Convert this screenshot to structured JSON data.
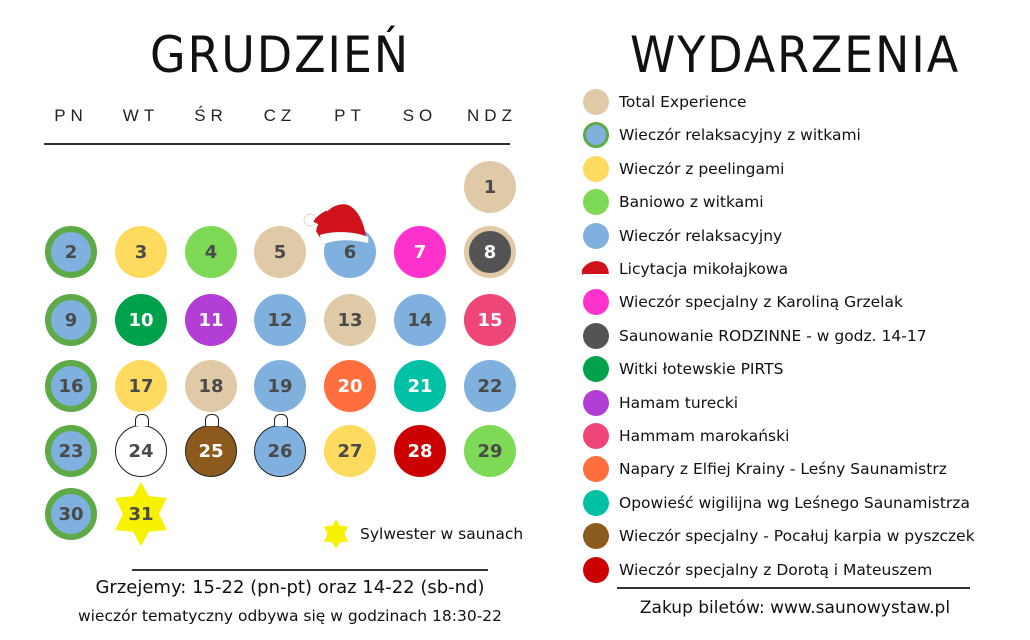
{
  "calendar": {
    "title": "GRUDZIEŃ",
    "weekdays": [
      "PN",
      "WT",
      "ŚR",
      "CZ",
      "PT",
      "SO",
      "NDZ"
    ],
    "days": [
      {
        "day": "1",
        "col": 6,
        "row": 0,
        "fill": "#e0c9a6",
        "text_color": "#4a4a4a",
        "style": "plain",
        "event": "Total Experience"
      },
      {
        "day": "2",
        "col": 0,
        "row": 1,
        "fill": "#7fb0de",
        "text_color": "#4a4a4a",
        "style": "ring-green",
        "event": "Wieczór relaksacyjny z witkami"
      },
      {
        "day": "3",
        "col": 1,
        "row": 1,
        "fill": "#fedb5e",
        "text_color": "#4a4a4a",
        "style": "plain",
        "event": "Wieczór z peelingami"
      },
      {
        "day": "4",
        "col": 2,
        "row": 1,
        "fill": "#7ed957",
        "text_color": "#4a4a4a",
        "style": "plain",
        "event": "Baniowo z witkami"
      },
      {
        "day": "5",
        "col": 3,
        "row": 1,
        "fill": "#e0c9a6",
        "text_color": "#4a4a4a",
        "style": "plain",
        "event": "Total Experience"
      },
      {
        "day": "6",
        "col": 4,
        "row": 1,
        "fill": "#7fb0de",
        "text_color": "#4a4a4a",
        "style": "plain",
        "event": "Wieczór relaksacyjny",
        "extra": "Licytacja mikołajkowa"
      },
      {
        "day": "7",
        "col": 5,
        "row": 1,
        "fill": "#ff33cc",
        "text_color": "#ffffff",
        "style": "plain",
        "event": "Wieczór specjalny z Karoliną Grzelak"
      },
      {
        "day": "8",
        "col": 6,
        "row": 1,
        "fill": "#545454",
        "text_color": "#ffffff",
        "style": "ring-tan",
        "event": "Saunowanie RODZINNE - w godz. 14-17"
      },
      {
        "day": "9",
        "col": 0,
        "row": 2,
        "fill": "#7fb0de",
        "text_color": "#4a4a4a",
        "style": "ring-green",
        "event": "Wieczór relaksacyjny z witkami"
      },
      {
        "day": "10",
        "col": 1,
        "row": 2,
        "fill": "#00a14b",
        "text_color": "#ffffff",
        "style": "plain",
        "event": "Witki łotewskie PIRTS"
      },
      {
        "day": "11",
        "col": 2,
        "row": 2,
        "fill": "#b23ed6",
        "text_color": "#ffffff",
        "style": "plain",
        "event": "Hamam turecki"
      },
      {
        "day": "12",
        "col": 3,
        "row": 2,
        "fill": "#7fb0de",
        "text_color": "#4a4a4a",
        "style": "plain",
        "event": "Wieczór relaksacyjny"
      },
      {
        "day": "13",
        "col": 4,
        "row": 2,
        "fill": "#e0c9a6",
        "text_color": "#4a4a4a",
        "style": "plain",
        "event": "Total Experience"
      },
      {
        "day": "14",
        "col": 5,
        "row": 2,
        "fill": "#7fb0de",
        "text_color": "#4a4a4a",
        "style": "plain",
        "event": "Wieczór relaksacyjny"
      },
      {
        "day": "15",
        "col": 6,
        "row": 2,
        "fill": "#ed4677",
        "text_color": "#ffffff",
        "style": "plain",
        "event": "Hammam marokański"
      },
      {
        "day": "16",
        "col": 0,
        "row": 3,
        "fill": "#7fb0de",
        "text_color": "#4a4a4a",
        "style": "ring-green",
        "event": "Wieczór relaksacyjny z witkami"
      },
      {
        "day": "17",
        "col": 1,
        "row": 3,
        "fill": "#fedb5e",
        "text_color": "#4a4a4a",
        "style": "plain",
        "event": "Wieczór z peelingami"
      },
      {
        "day": "18",
        "col": 2,
        "row": 3,
        "fill": "#e0c9a6",
        "text_color": "#4a4a4a",
        "style": "plain",
        "event": "Total Experience"
      },
      {
        "day": "19",
        "col": 3,
        "row": 3,
        "fill": "#7fb0de",
        "text_color": "#4a4a4a",
        "style": "plain",
        "event": "Wieczór relaksacyjny"
      },
      {
        "day": "20",
        "col": 4,
        "row": 3,
        "fill": "#ff6f3d",
        "text_color": "#ffffff",
        "style": "plain",
        "event": "Napary z Elfiej Krainy - Leśny Saunamistrz"
      },
      {
        "day": "21",
        "col": 5,
        "row": 3,
        "fill": "#00c1a6",
        "text_color": "#ffffff",
        "style": "plain",
        "event": "Opowieść wigilijna wg Leśnego Saunamistrza"
      },
      {
        "day": "22",
        "col": 6,
        "row": 3,
        "fill": "#7fb0de",
        "text_color": "#4a4a4a",
        "style": "plain",
        "event": "Wieczór relaksacyjny"
      },
      {
        "day": "23",
        "col": 0,
        "row": 4,
        "fill": "#7fb0de",
        "text_color": "#4a4a4a",
        "style": "ring-green",
        "event": "Wieczór relaksacyjny z witkami"
      },
      {
        "day": "24",
        "col": 1,
        "row": 4,
        "fill": "#ffffff",
        "text_color": "#4a4a4a",
        "style": "ornament",
        "event": ""
      },
      {
        "day": "25",
        "col": 2,
        "row": 4,
        "fill": "#8b5a1c",
        "text_color": "#ffffff",
        "style": "ornament",
        "event": "Wieczór specjalny - Pocałuj karpia w pyszczek"
      },
      {
        "day": "26",
        "col": 3,
        "row": 4,
        "fill": "#7fb0de",
        "text_color": "#4a4a4a",
        "style": "ornament",
        "event": "Wieczór relaksacyjny"
      },
      {
        "day": "27",
        "col": 4,
        "row": 4,
        "fill": "#fedb5e",
        "text_color": "#4a4a4a",
        "style": "plain",
        "event": "Wieczór z peelingami"
      },
      {
        "day": "28",
        "col": 5,
        "row": 4,
        "fill": "#cc0000",
        "text_color": "#ffffff",
        "style": "plain",
        "event": "Wieczór specjalny z Dorotą i Mateuszem"
      },
      {
        "day": "29",
        "col": 6,
        "row": 4,
        "fill": "#7ed957",
        "text_color": "#4a4a4a",
        "style": "plain",
        "event": "Baniowo z witkami"
      },
      {
        "day": "30",
        "col": 0,
        "row": 5,
        "fill": "#7fb0de",
        "text_color": "#4a4a4a",
        "style": "ring-green",
        "event": "Wieczór relaksacyjny z witkami"
      },
      {
        "day": "31",
        "col": 1,
        "row": 5,
        "fill": "#f7f300",
        "text_color": "#4a4a4a",
        "style": "star",
        "event": "Sylwester w saunach"
      }
    ],
    "star_note": "Sylwester w saunach",
    "hours_line": "Grzejemy: 15-22 (pn-pt) oraz 14-22 (sb-nd)",
    "themed_evening_line": "wieczór tematyczny odbywa się w godzinach 18:30-22"
  },
  "events": {
    "title": "WYDARZENIA",
    "items": [
      {
        "label": "Total Experience",
        "color": "#e0c9a6",
        "icon": "circle"
      },
      {
        "label": "Wieczór relaksacyjny z witkami",
        "color": "#7fb0de",
        "ring": "#5eaa46",
        "icon": "ring-circle"
      },
      {
        "label": "Wieczór z peelingami",
        "color": "#fedb5e",
        "icon": "circle"
      },
      {
        "label": "Baniowo z witkami",
        "color": "#7ed957",
        "icon": "circle"
      },
      {
        "label": "Wieczór relaksacyjny",
        "color": "#7fb0de",
        "icon": "circle"
      },
      {
        "label": "Licytacja mikołajkowa",
        "color": "#cc0000",
        "icon": "santa-hat"
      },
      {
        "label": "Wieczór specjalny z Karoliną Grzelak",
        "color": "#ff33cc",
        "icon": "circle"
      },
      {
        "label": "Saunowanie RODZINNE - w godz. 14-17",
        "color": "#545454",
        "icon": "circle"
      },
      {
        "label": "Witki łotewskie PIRTS",
        "color": "#00a14b",
        "icon": "circle"
      },
      {
        "label": "Hamam turecki",
        "color": "#b23ed6",
        "icon": "circle"
      },
      {
        "label": "Hammam marokański",
        "color": "#ed4677",
        "icon": "circle"
      },
      {
        "label": "Napary z Elfiej Krainy - Leśny Saunamistrz",
        "color": "#ff6f3d",
        "icon": "circle"
      },
      {
        "label": "Opowieść wigilijna wg Leśnego Saunamistrza",
        "color": "#00c1a6",
        "icon": "circle"
      },
      {
        "label": "Wieczór specjalny - Pocałuj karpia w pyszczek",
        "color": "#8b5a1c",
        "icon": "circle"
      },
      {
        "label": "Wieczór specjalny z Dorotą i Mateuszem",
        "color": "#cc0000",
        "icon": "circle"
      }
    ],
    "tickets": "Zakup biletów: www.saunowystaw.pl"
  }
}
